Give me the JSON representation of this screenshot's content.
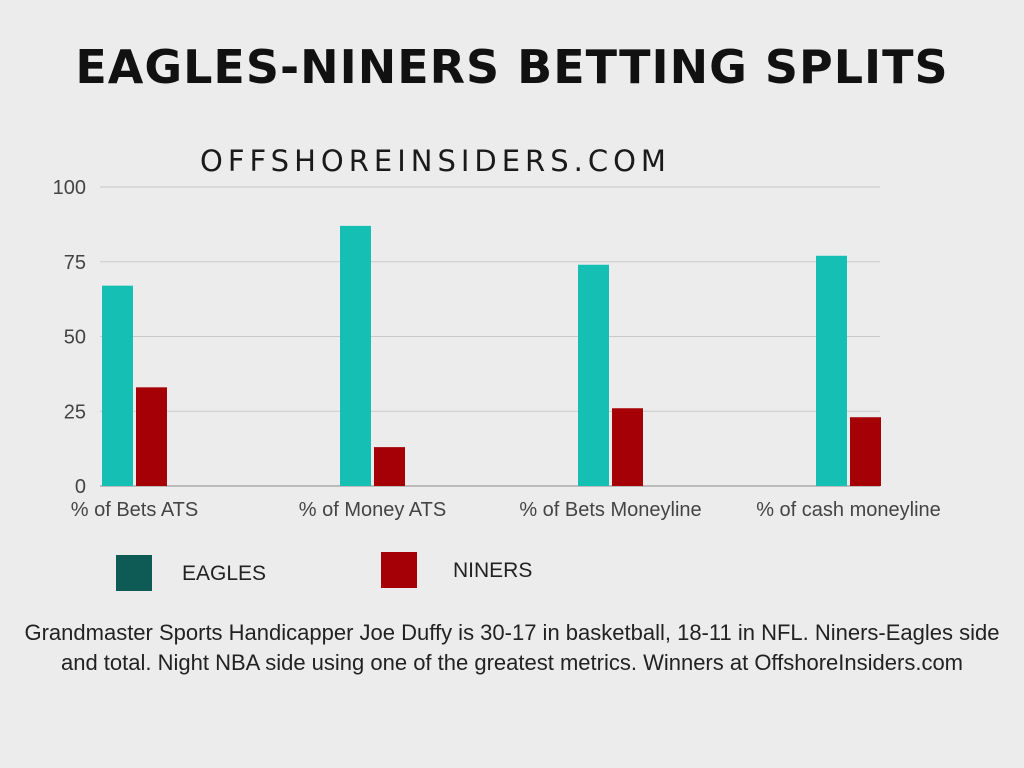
{
  "title": "EAGLES-NINERS BETTING SPLITS",
  "watermark": "OFFSHOREINSIDERS.COM",
  "colors": {
    "eagles_bar": "#16bfb4",
    "eagles_legend": "#0e5a55",
    "niners": "#a50006"
  },
  "legend": {
    "eagles": "EAGLES",
    "niners": "NINERS"
  },
  "caption": "Grandmaster Sports Handicapper Joe Duffy is 30-17 in basketball, 18-11 in NFL. Niners-Eagles side and total. Night NBA side using one of the greatest metrics. Winners at OffshoreInsiders.com",
  "chart_data": {
    "type": "bar",
    "categories": [
      "% of Bets ATS",
      "% of Money ATS",
      "% of Bets Moneyline",
      "% of cash moneyline"
    ],
    "series": [
      {
        "name": "EAGLES",
        "values": [
          67,
          87,
          74,
          77
        ]
      },
      {
        "name": "NINERS",
        "values": [
          33,
          13,
          26,
          23
        ]
      }
    ],
    "yticks": [
      "0",
      "25",
      "50",
      "75",
      "100"
    ],
    "ylim": [
      0,
      100
    ],
    "grid": true
  }
}
